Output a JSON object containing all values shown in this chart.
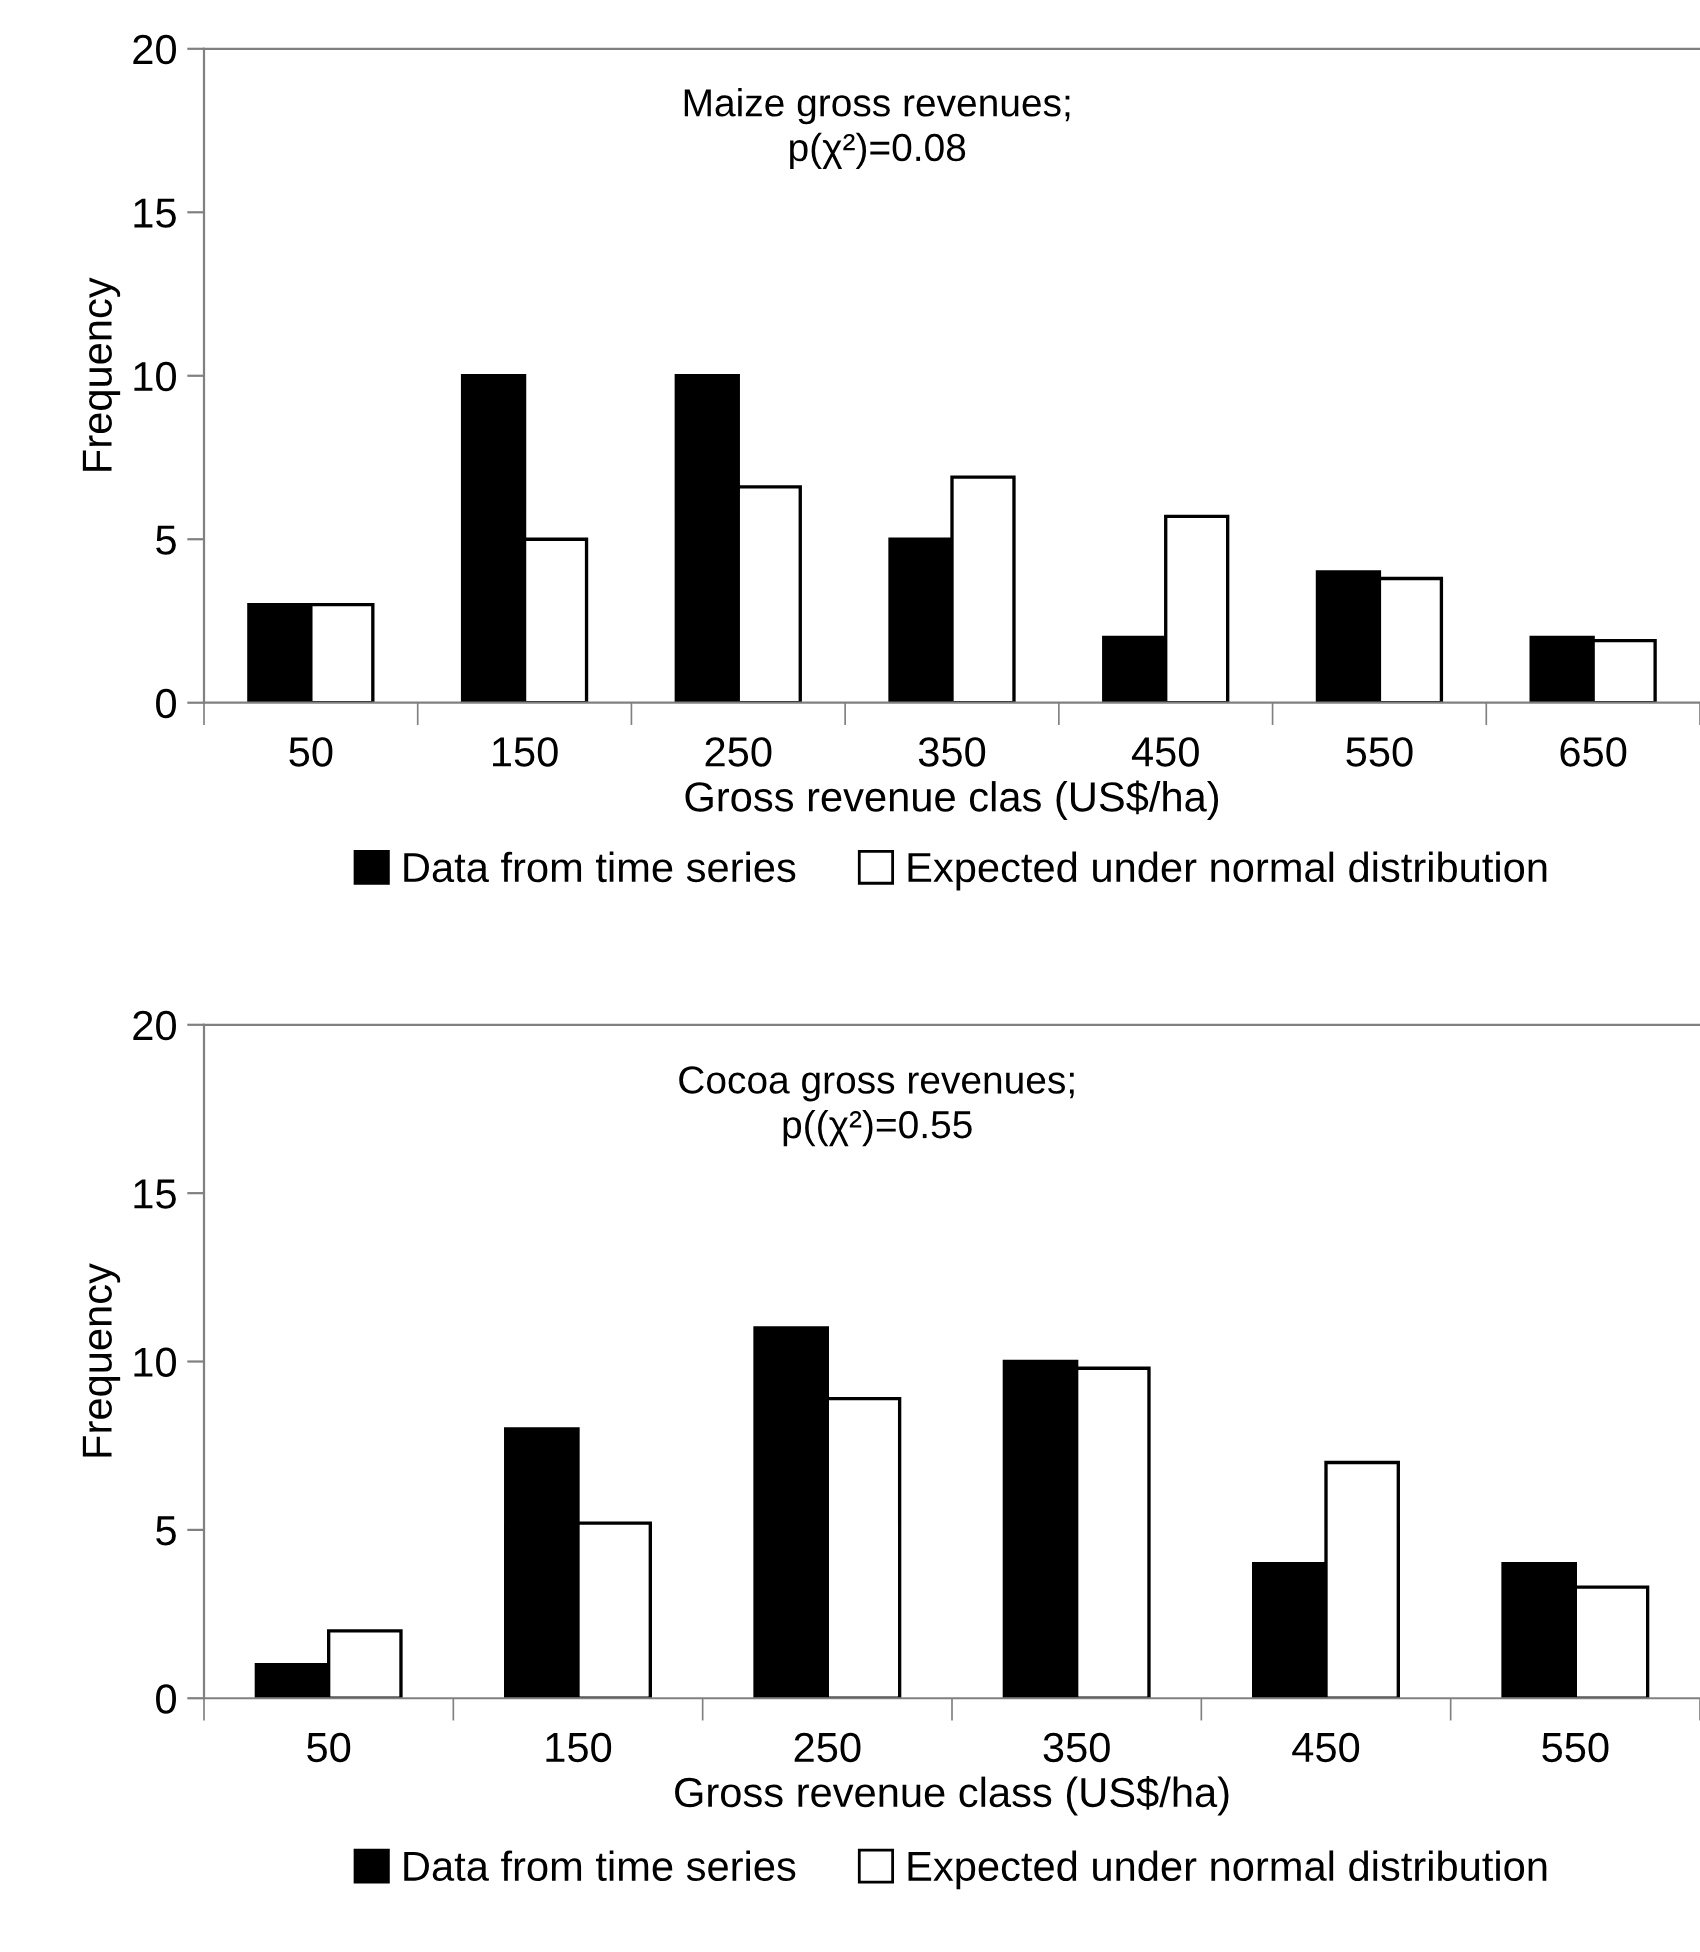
{
  "chart_data": [
    {
      "type": "bar",
      "title": "Maize gross revenues;\np(χ²)=0.08",
      "xlabel": "Gross revenue clas (US$/ha)",
      "ylabel": "Frequency",
      "categories": [
        "50",
        "150",
        "250",
        "350",
        "450",
        "550",
        "650"
      ],
      "series": [
        {
          "name": "Data from time series",
          "color": "#000000",
          "values": [
            3,
            10,
            10,
            5,
            2,
            4,
            2
          ]
        },
        {
          "name": "Expected under normal distribution",
          "color": "#ffffff",
          "values": [
            3,
            5,
            6.6,
            6.9,
            5.7,
            3.8,
            1.9
          ]
        }
      ],
      "ylim": [
        0,
        20
      ],
      "yticks": [
        0,
        5,
        10,
        15,
        20
      ],
      "legend": "bottom"
    },
    {
      "type": "bar",
      "title": "Cocoa gross revenues;\np((χ²)=0.55",
      "xlabel": "Gross revenue class (US$/ha)",
      "ylabel": "Frequency",
      "categories": [
        "50",
        "150",
        "250",
        "350",
        "450",
        "550"
      ],
      "series": [
        {
          "name": "Data from time series",
          "color": "#000000",
          "values": [
            1,
            8,
            11,
            10,
            4,
            4
          ]
        },
        {
          "name": "Expected under normal distribution",
          "color": "#ffffff",
          "values": [
            2,
            5.2,
            8.9,
            9.8,
            7.0,
            3.3
          ]
        }
      ],
      "ylim": [
        0,
        20
      ],
      "yticks": [
        0,
        5,
        10,
        15,
        20
      ],
      "legend": "bottom"
    }
  ]
}
